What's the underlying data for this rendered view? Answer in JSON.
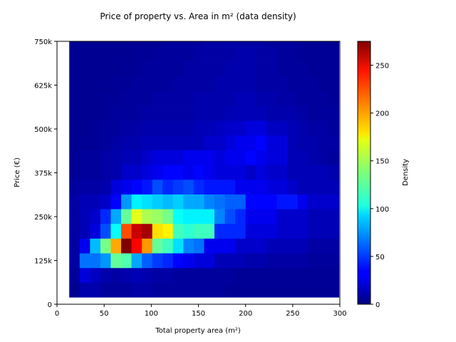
{
  "chart_data": {
    "type": "heatmap",
    "title": "Price of property vs. Area in m² (data density)",
    "xlabel": "Total property area (m²)",
    "ylabel": "Price (€)",
    "colorbar_label": "Density",
    "colormap": "jet",
    "xlim": [
      0,
      300
    ],
    "ylim": [
      0,
      750000
    ],
    "x_ticks": [
      0,
      50,
      100,
      150,
      200,
      250,
      300
    ],
    "x_tick_labels": [
      "0",
      "50",
      "100",
      "150",
      "200",
      "250",
      "300"
    ],
    "y_ticks": [
      0,
      125000,
      250000,
      375000,
      500000,
      625000,
      750000
    ],
    "y_tick_labels": [
      "0",
      "125k",
      "250k",
      "375k",
      "500k",
      "625k",
      "750k"
    ],
    "colorbar_range": [
      0,
      275
    ],
    "colorbar_ticks": [
      0,
      50,
      100,
      150,
      200,
      250
    ],
    "colorbar_tick_labels": [
      "0",
      "50",
      "100",
      "150",
      "200",
      "250"
    ],
    "x_edges": [
      13,
      24,
      35,
      46,
      57,
      68,
      79,
      90,
      101,
      112,
      123,
      134,
      145,
      156,
      167,
      178,
      189,
      200,
      211,
      222,
      233,
      244,
      255,
      266,
      277,
      288,
      299
    ],
    "y_edges": [
      20000,
      62000,
      104000,
      146000,
      188000,
      230000,
      272000,
      314000,
      356000,
      398000,
      440000,
      482000,
      524000,
      566000,
      608000,
      650000,
      692000,
      734000,
      760000
    ],
    "density": [
      [
        5,
        12,
        12,
        8,
        8,
        8,
        10,
        10,
        8,
        8,
        8,
        8,
        8,
        8,
        8,
        6,
        6,
        6,
        6,
        6,
        6,
        6,
        6,
        6,
        6,
        6
      ],
      [
        8,
        25,
        18,
        12,
        10,
        12,
        15,
        12,
        10,
        10,
        8,
        8,
        8,
        8,
        8,
        8,
        6,
        6,
        6,
        6,
        6,
        6,
        6,
        6,
        6,
        6
      ],
      [
        10,
        65,
        65,
        75,
        130,
        125,
        80,
        60,
        50,
        45,
        35,
        30,
        25,
        25,
        15,
        15,
        15,
        12,
        12,
        10,
        10,
        10,
        10,
        8,
        8,
        8
      ],
      [
        10,
        30,
        85,
        135,
        195,
        275,
        240,
        200,
        130,
        120,
        95,
        70,
        65,
        30,
        30,
        30,
        20,
        20,
        20,
        15,
        15,
        15,
        15,
        10,
        10,
        10
      ],
      [
        10,
        15,
        25,
        55,
        105,
        220,
        255,
        265,
        180,
        175,
        120,
        115,
        120,
        120,
        45,
        45,
        45,
        25,
        25,
        25,
        20,
        20,
        20,
        15,
        15,
        15
      ],
      [
        10,
        15,
        20,
        45,
        80,
        130,
        165,
        150,
        145,
        135,
        105,
        100,
        100,
        100,
        70,
        55,
        45,
        30,
        30,
        30,
        20,
        20,
        20,
        15,
        15,
        15
      ],
      [
        10,
        15,
        15,
        20,
        35,
        75,
        100,
        95,
        90,
        85,
        90,
        80,
        80,
        70,
        65,
        60,
        60,
        35,
        35,
        35,
        40,
        40,
        30,
        20,
        20,
        20
      ],
      [
        8,
        10,
        10,
        12,
        25,
        30,
        35,
        40,
        55,
        45,
        50,
        55,
        45,
        40,
        40,
        40,
        30,
        30,
        30,
        25,
        25,
        20,
        15,
        15,
        15,
        15
      ],
      [
        6,
        8,
        8,
        10,
        12,
        20,
        20,
        25,
        30,
        35,
        35,
        30,
        35,
        30,
        25,
        25,
        25,
        20,
        25,
        20,
        20,
        15,
        15,
        15,
        15,
        12
      ],
      [
        6,
        8,
        8,
        10,
        12,
        15,
        15,
        20,
        25,
        25,
        25,
        30,
        30,
        30,
        25,
        30,
        30,
        35,
        30,
        25,
        25,
        15,
        15,
        12,
        10,
        8
      ],
      [
        5,
        6,
        6,
        8,
        10,
        12,
        12,
        15,
        15,
        15,
        15,
        15,
        15,
        20,
        20,
        25,
        30,
        30,
        35,
        25,
        25,
        15,
        12,
        12,
        10,
        10
      ],
      [
        5,
        5,
        6,
        8,
        8,
        10,
        10,
        12,
        12,
        12,
        12,
        12,
        15,
        15,
        18,
        20,
        20,
        25,
        25,
        18,
        18,
        15,
        12,
        10,
        10,
        8
      ],
      [
        5,
        5,
        5,
        6,
        8,
        8,
        8,
        10,
        10,
        10,
        10,
        10,
        12,
        12,
        12,
        15,
        15,
        15,
        15,
        12,
        12,
        12,
        10,
        8,
        8,
        8
      ],
      [
        5,
        5,
        5,
        6,
        6,
        8,
        8,
        8,
        10,
        10,
        10,
        10,
        12,
        12,
        12,
        12,
        15,
        15,
        12,
        12,
        10,
        10,
        8,
        8,
        8,
        6
      ],
      [
        5,
        5,
        5,
        5,
        6,
        6,
        8,
        8,
        8,
        8,
        10,
        10,
        10,
        10,
        12,
        12,
        12,
        12,
        10,
        10,
        10,
        8,
        8,
        8,
        6,
        6
      ],
      [
        5,
        5,
        5,
        5,
        5,
        6,
        6,
        8,
        8,
        8,
        8,
        10,
        10,
        10,
        10,
        12,
        12,
        12,
        10,
        10,
        8,
        8,
        8,
        6,
        6,
        6
      ],
      [
        5,
        5,
        5,
        5,
        5,
        5,
        6,
        6,
        8,
        8,
        8,
        8,
        10,
        10,
        10,
        10,
        12,
        12,
        10,
        10,
        8,
        8,
        6,
        6,
        6,
        6
      ],
      [
        5,
        5,
        5,
        5,
        5,
        5,
        5,
        6,
        6,
        8,
        8,
        8,
        8,
        10,
        10,
        10,
        10,
        10,
        10,
        8,
        8,
        8,
        6,
        6,
        6,
        5
      ]
    ]
  }
}
